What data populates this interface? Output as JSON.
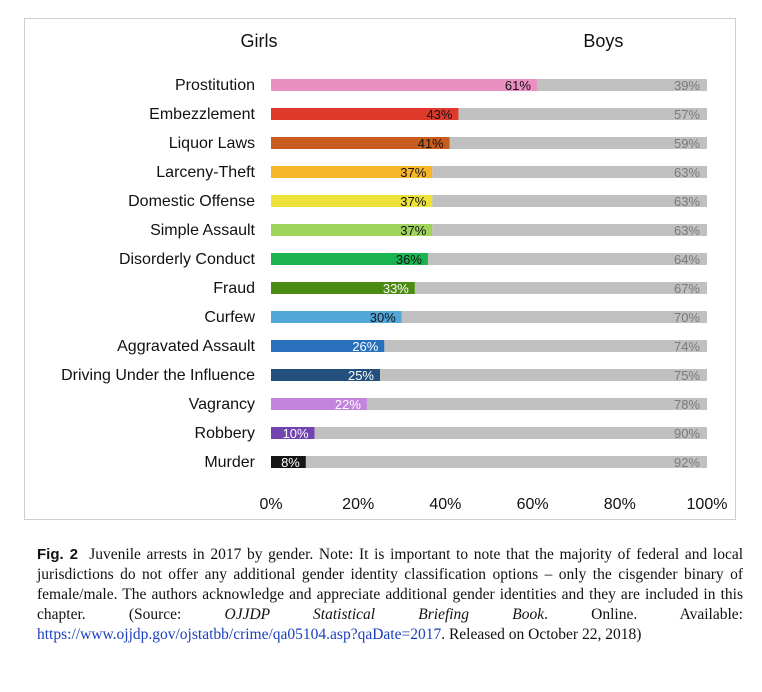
{
  "chart_data": {
    "type": "bar",
    "orientation": "horizontal",
    "stacked": "percent",
    "legend": [
      "Girls",
      "Boys"
    ],
    "categories": [
      "Prostitution",
      "Embezzlement",
      "Liquor Laws",
      "Larceny-Theft",
      "Domestic Offense",
      "Simple Assault",
      "Disorderly Conduct",
      "Fraud",
      "Curfew",
      "Aggravated Assault",
      "Driving Under the Influence",
      "Vagrancy",
      "Robbery",
      "Murder"
    ],
    "series": [
      {
        "name": "Girls",
        "values": [
          61,
          43,
          41,
          37,
          37,
          37,
          36,
          33,
          30,
          26,
          25,
          22,
          10,
          8
        ]
      },
      {
        "name": "Boys",
        "values": [
          39,
          57,
          59,
          63,
          63,
          63,
          64,
          67,
          70,
          74,
          75,
          78,
          90,
          92
        ]
      }
    ],
    "girls_labels": [
      "61%",
      "43%",
      "41%",
      "37%",
      "37%",
      "37%",
      "36%",
      "33%",
      "30%",
      "26%",
      "25%",
      "22%",
      "10%",
      "8%"
    ],
    "boys_labels": [
      "39%",
      "57%",
      "59%",
      "63%",
      "63%",
      "63%",
      "64%",
      "67%",
      "70%",
      "74%",
      "75%",
      "78%",
      "90%",
      "92%"
    ],
    "girls_colors": [
      "#e98fc1",
      "#e03a2d",
      "#c85b1e",
      "#f7b62a",
      "#ece239",
      "#9fd35c",
      "#1ab350",
      "#4c8b12",
      "#52a7d8",
      "#2a71bd",
      "#234f7d",
      "#c483dd",
      "#7144b0",
      "#151515"
    ],
    "girls_label_colors": [
      "#111111",
      "#111111",
      "#111111",
      "#111111",
      "#111111",
      "#111111",
      "#111111",
      "#ffffff",
      "#111111",
      "#ffffff",
      "#ffffff",
      "#ffffff",
      "#ffffff",
      "#ffffff"
    ],
    "boys_color": "#c0c0c0",
    "boys_label_color": "#7a7a7a",
    "xlim": [
      0,
      100
    ],
    "xticks": [
      "0%",
      "20%",
      "40%",
      "60%",
      "80%",
      "100%"
    ],
    "grid": false,
    "legend_position": "top"
  },
  "caption": {
    "fig_label": "Fig. 2",
    "text_before_source": "Juvenile arrests in 2017 by gender. Note: It is important to note that the majority of federal and local jurisdictions do not offer any additional gender identity classification options – only the cisgender binary of female/male. The authors acknowledge and appreciate additional gender identities and they are included in this chapter. (Source: ",
    "source": "OJJDP Statistical Briefing Book",
    "text_after_source": ". Online. Available: ",
    "url": "https://www.ojjdp.gov/ojstatbb/crime/qa05104.asp?qaDate=2017",
    "text_end": ". Released on October 22, 2018)"
  }
}
